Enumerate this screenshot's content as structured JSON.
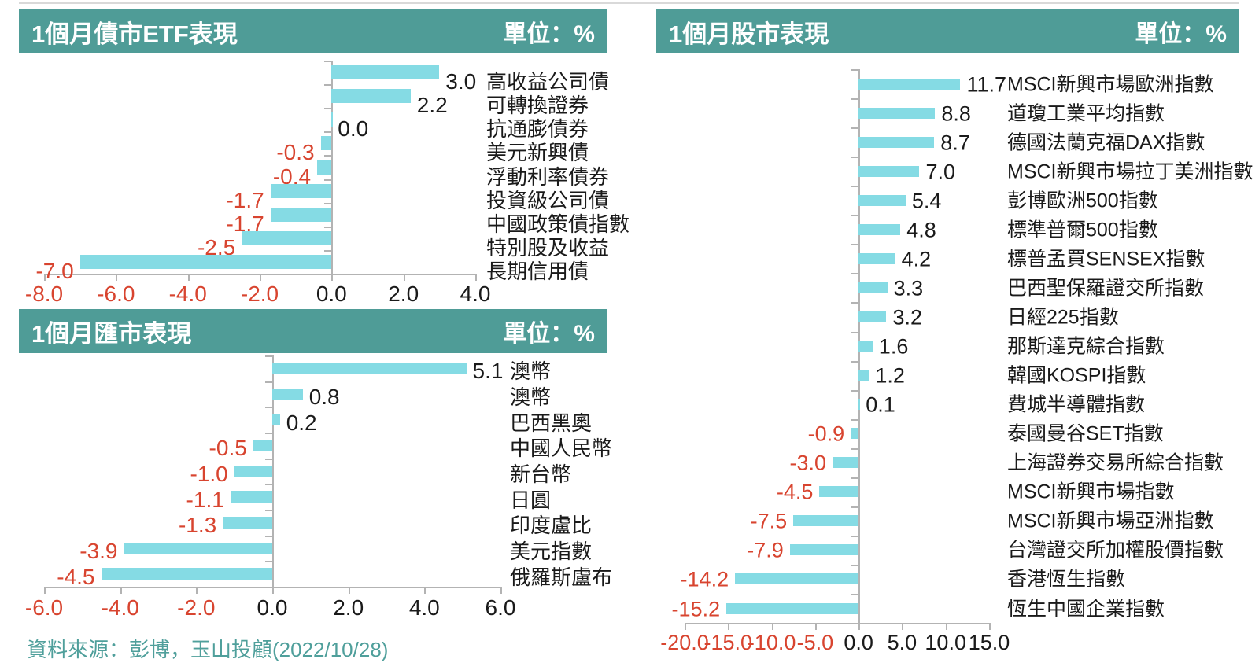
{
  "page": {
    "background": "#FFFFFF"
  },
  "colors": {
    "header_bg": "#4F9C97",
    "header_text": "#FFFFFF",
    "bar": "#85DBE4",
    "negative": "#D8442F",
    "text": "#1A1A1A",
    "axis": "#B3B3B3",
    "source": "#4F9F9B",
    "top_rule": "#D9D9D9"
  },
  "footer": {
    "source": "資料來源：彭博，玉山投顧(2022/10/28)"
  },
  "chart_data": [
    {
      "id": "bond-etf",
      "type": "bar",
      "orientation": "horizontal",
      "title": "1個月債市ETF表現",
      "unit_label": "單位：%",
      "categories": [
        "高收益公司債",
        "可轉換證券",
        "抗通膨債券",
        "美元新興債",
        "浮動利率債券",
        "投資級公司債",
        "中國政策債指數",
        "特別股及收益",
        "長期信用債"
      ],
      "values": [
        3.0,
        2.2,
        0.0,
        -0.3,
        -0.4,
        -1.7,
        -1.7,
        -2.5,
        -7.0
      ],
      "xlim": [
        -8.0,
        4.0
      ],
      "xtick_labels": [
        "-8.0",
        "-6.0",
        "-4.0",
        "-2.0",
        "0.0",
        "2.0",
        "4.0"
      ],
      "grid": false,
      "legend": "none"
    },
    {
      "id": "fx",
      "type": "bar",
      "orientation": "horizontal",
      "title": "1個月匯市表現",
      "unit_label": "單位：%",
      "categories": [
        "澳幣",
        "澳幣",
        "巴西黑奧",
        "中國人民幣",
        "新台幣",
        "日圓",
        "印度盧比",
        "美元指數",
        "俄羅斯盧布"
      ],
      "values": [
        5.1,
        0.8,
        0.2,
        -0.5,
        -1.0,
        -1.1,
        -1.3,
        -3.9,
        -4.5
      ],
      "xlim": [
        -6.0,
        6.0
      ],
      "xtick_labels": [
        "-6.0",
        "-4.0",
        "-2.0",
        "0.0",
        "2.0",
        "4.0",
        "6.0"
      ],
      "grid": false,
      "legend": "none"
    },
    {
      "id": "stock",
      "type": "bar",
      "orientation": "horizontal",
      "title": "1個月股市表現",
      "unit_label": "單位：%",
      "categories": [
        "MSCI新興市場歐洲指數",
        "道瓊工業平均指數",
        "德國法蘭克福DAX指數",
        "MSCI新興市場拉丁美洲指數",
        "彭博歐洲500指數",
        "標準普爾500指數",
        "標普孟買SENSEX指數",
        "巴西聖保羅證交所指數",
        "日經225指數",
        "那斯達克綜合指數",
        "韓國KOSPI指數",
        "費城半導體指數",
        "泰國曼谷SET指數",
        "上海證券交易所綜合指數",
        "MSCI新興市場指數",
        "MSCI新興市場亞洲指數",
        "台灣證交所加權股價指數",
        "香港恆生指數",
        "恆生中國企業指數"
      ],
      "values": [
        11.7,
        8.8,
        8.7,
        7.0,
        5.4,
        4.8,
        4.2,
        3.3,
        3.2,
        1.6,
        1.2,
        0.1,
        -0.9,
        -3.0,
        -4.5,
        -7.5,
        -7.9,
        -14.2,
        -15.2
      ],
      "xlim": [
        -20.0,
        15.0
      ],
      "xtick_labels": [
        "-20.0",
        "-15.0",
        "-10.0",
        "-5.0",
        "0.0",
        "5.0",
        "10.0",
        "15.0"
      ],
      "grid": false,
      "legend": "none"
    }
  ]
}
